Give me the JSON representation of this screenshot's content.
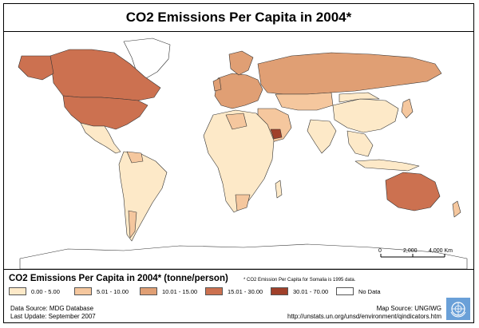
{
  "title": "CO2 Emissions Per Capita in 2004*",
  "scale_bar": {
    "labels": [
      "0",
      "2,000",
      "4,000 Km"
    ]
  },
  "legend": {
    "title": "CO2 Emissions Per Capita in 2004* (tonne/person)",
    "note": "* CO2 Emission Per Capita for Somalia is 1995 data.",
    "items": [
      {
        "label": "0.00 - 5.00",
        "color": "#fde9c8"
      },
      {
        "label": "5.01 - 10.00",
        "color": "#f5c79e"
      },
      {
        "label": "10.01 - 15.00",
        "color": "#e09f74"
      },
      {
        "label": "15.01 - 30.00",
        "color": "#cc7150"
      },
      {
        "label": "30.01 - 70.00",
        "color": "#a0402a"
      },
      {
        "label": "No Data",
        "color": "#ffffff"
      }
    ]
  },
  "footer": {
    "data_source": "Data Source: MDG Database",
    "last_update": "Last Update: September 2007",
    "map_source": "Map Source: UNGIWG",
    "url": "http://unstats.un.org/unsd/environment/qindicators.htm"
  },
  "logo": {
    "icon": "un-emblem-icon"
  }
}
